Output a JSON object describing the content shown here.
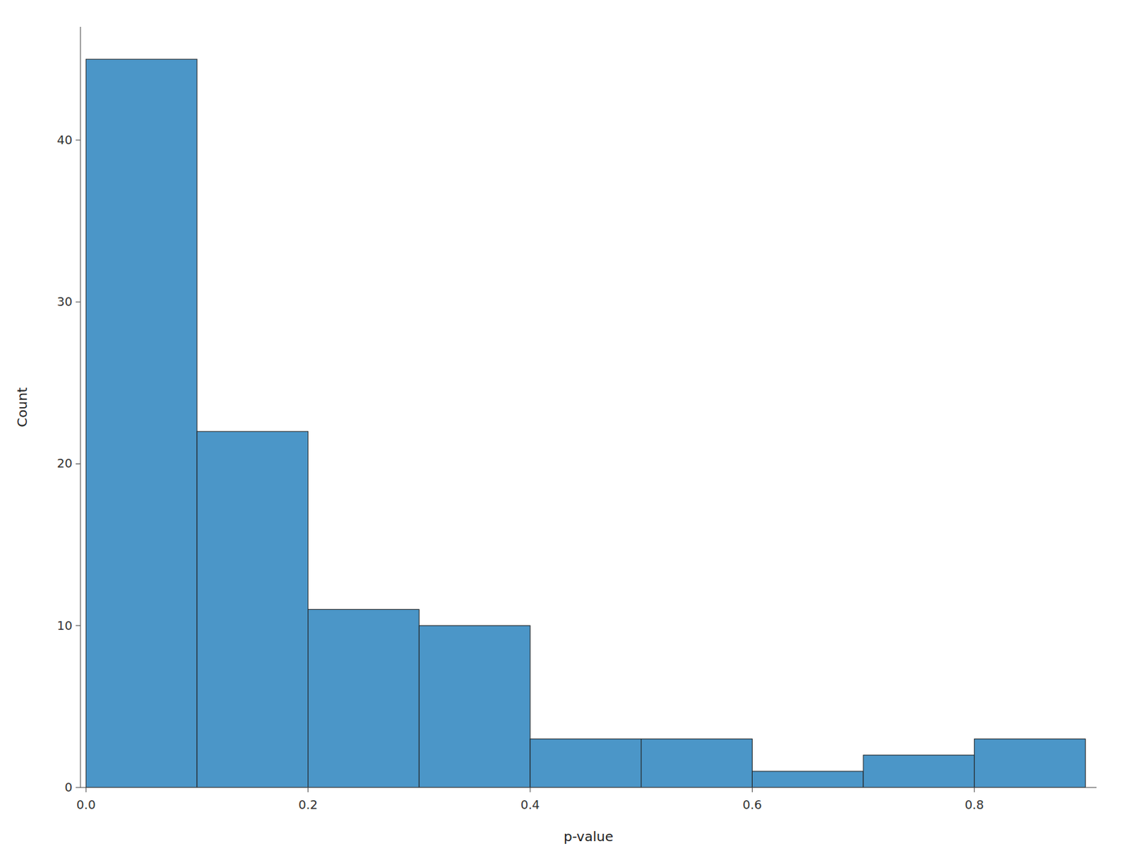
{
  "chart_data": {
    "type": "histogram",
    "xlabel": "p-value",
    "ylabel": "Count",
    "bins": [
      0.0,
      0.1,
      0.2,
      0.3,
      0.4,
      0.5,
      0.6,
      0.7,
      0.8,
      0.9
    ],
    "values": [
      45,
      22,
      11,
      10,
      3,
      3,
      1,
      2,
      3
    ],
    "color": "#4b96c8",
    "xlim": [
      -0.005,
      0.91
    ],
    "ylim": [
      0,
      47
    ],
    "xticks": [
      {
        "value": 0.0,
        "label": "0.0"
      },
      0.2,
      0.4,
      0.6,
      0.8
    ],
    "yticks": [
      0,
      10,
      20,
      30,
      40
    ]
  }
}
